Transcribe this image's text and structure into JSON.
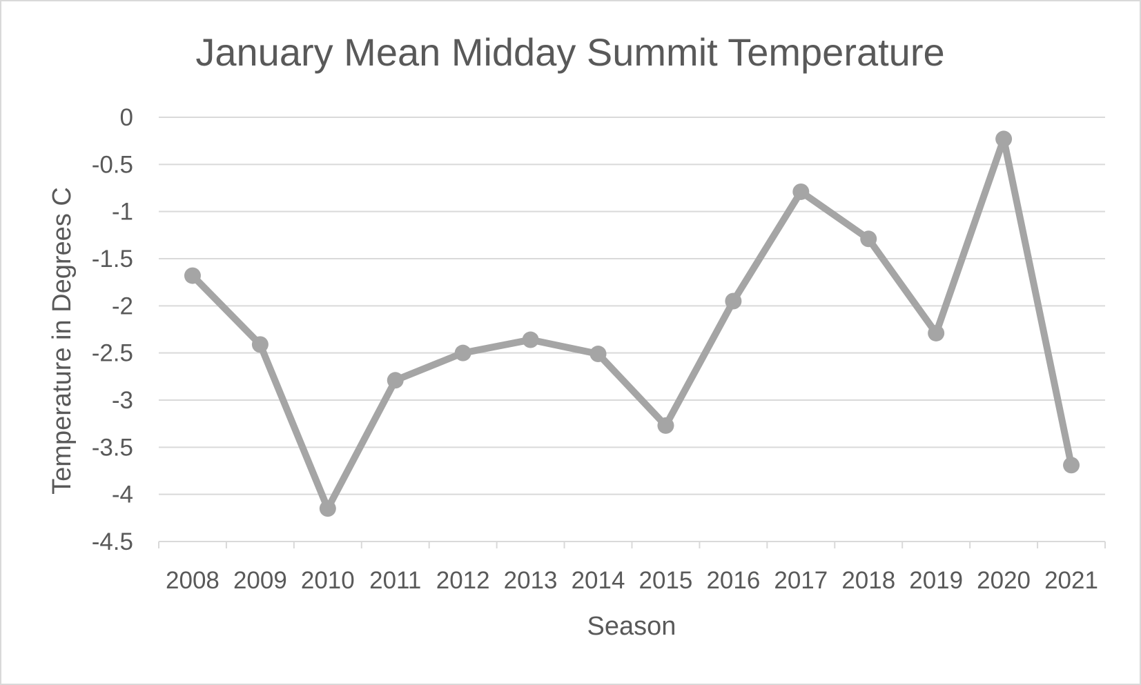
{
  "chart_data": {
    "type": "line",
    "title": "January Mean Midday Summit Temperature",
    "xlabel": "Season",
    "ylabel": "Temperature in Degrees C",
    "categories": [
      "2008",
      "2009",
      "2010",
      "2011",
      "2012",
      "2013",
      "2014",
      "2015",
      "2016",
      "2017",
      "2018",
      "2019",
      "2020",
      "2021"
    ],
    "series": [
      {
        "values": [
          -1.68,
          -2.41,
          -4.15,
          -2.79,
          -2.5,
          -2.36,
          -2.51,
          -3.27,
          -1.95,
          -0.79,
          -1.29,
          -2.29,
          -0.23,
          -3.69
        ]
      }
    ],
    "ylim": [
      -4.5,
      0
    ],
    "yticks": [
      0,
      -0.5,
      -1,
      -1.5,
      -2,
      -2.5,
      -3,
      -3.5,
      -4,
      -4.5
    ],
    "ytick_labels": [
      "0",
      "-0.5",
      "-1",
      "-1.5",
      "-2",
      "-2.5",
      "-3",
      "-3.5",
      "-4",
      "-4.5"
    ],
    "grid": true,
    "legend": "none",
    "colors": {
      "line": "#a5a5a5",
      "grid": "#d9d9d9",
      "axis": "#d9d9d9",
      "text": "#595959"
    }
  }
}
